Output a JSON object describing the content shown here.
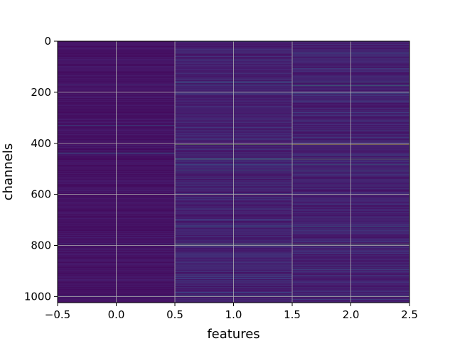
{
  "chart_data": {
    "type": "heatmap",
    "title": "",
    "xlabel": "features",
    "ylabel": "channels",
    "xlim": [
      -0.5,
      2.5
    ],
    "ylim": [
      1024,
      0
    ],
    "y_inverted": true,
    "grid": true,
    "colormap": "viridis",
    "columns": [
      0,
      1,
      2
    ],
    "rows": 1024,
    "xticks": [
      {
        "value": -0.5,
        "label": "−0.5"
      },
      {
        "value": 0.0,
        "label": "0.0"
      },
      {
        "value": 0.5,
        "label": "0.5"
      },
      {
        "value": 1.0,
        "label": "1.0"
      },
      {
        "value": 1.5,
        "label": "1.5"
      },
      {
        "value": 2.0,
        "label": "2.0"
      },
      {
        "value": 2.5,
        "label": "2.5"
      }
    ],
    "yticks": [
      {
        "value": 0,
        "label": "0"
      },
      {
        "value": 200,
        "label": "200"
      },
      {
        "value": 400,
        "label": "400"
      },
      {
        "value": 600,
        "label": "600"
      },
      {
        "value": 800,
        "label": "800"
      },
      {
        "value": 1000,
        "label": "1000"
      }
    ],
    "highlights": [
      {
        "row": 47,
        "values": [
          0.05,
          0.35,
          0.45
        ]
      },
      {
        "row": 70,
        "values": [
          0.08,
          0.25,
          0.2
        ]
      },
      {
        "row": 160,
        "values": [
          0.05,
          0.55,
          0.6
        ]
      },
      {
        "row": 168,
        "values": [
          0.22,
          0.4,
          0.3
        ]
      },
      {
        "row": 175,
        "values": [
          0.1,
          0.2,
          0.65
        ]
      },
      {
        "row": 205,
        "values": [
          0.05,
          0.25,
          0.3
        ]
      },
      {
        "row": 330,
        "values": [
          0.35,
          0.1,
          0.1
        ]
      },
      {
        "row": 348,
        "values": [
          0.05,
          0.2,
          0.25
        ]
      },
      {
        "row": 405,
        "values": [
          0.05,
          0.8,
          0.95
        ]
      },
      {
        "row": 437,
        "values": [
          0.45,
          0.1,
          0.1
        ]
      },
      {
        "row": 440,
        "values": [
          0.3,
          0.1,
          0.1
        ]
      },
      {
        "row": 462,
        "values": [
          0.05,
          0.7,
          0.75
        ]
      },
      {
        "row": 470,
        "values": [
          0.05,
          0.3,
          0.35
        ]
      },
      {
        "row": 484,
        "values": [
          0.05,
          0.4,
          0.55
        ]
      },
      {
        "row": 508,
        "values": [
          0.05,
          0.45,
          0.4
        ]
      },
      {
        "row": 516,
        "values": [
          0.05,
          0.2,
          0.3
        ]
      },
      {
        "row": 725,
        "values": [
          0.05,
          0.45,
          0.4
        ]
      },
      {
        "row": 795,
        "values": [
          0.35,
          0.85,
          0.85
        ]
      },
      {
        "row": 893,
        "values": [
          0.05,
          0.2,
          0.4
        ]
      },
      {
        "row": 998,
        "values": [
          0.3,
          0.45,
          0.45
        ]
      }
    ]
  }
}
